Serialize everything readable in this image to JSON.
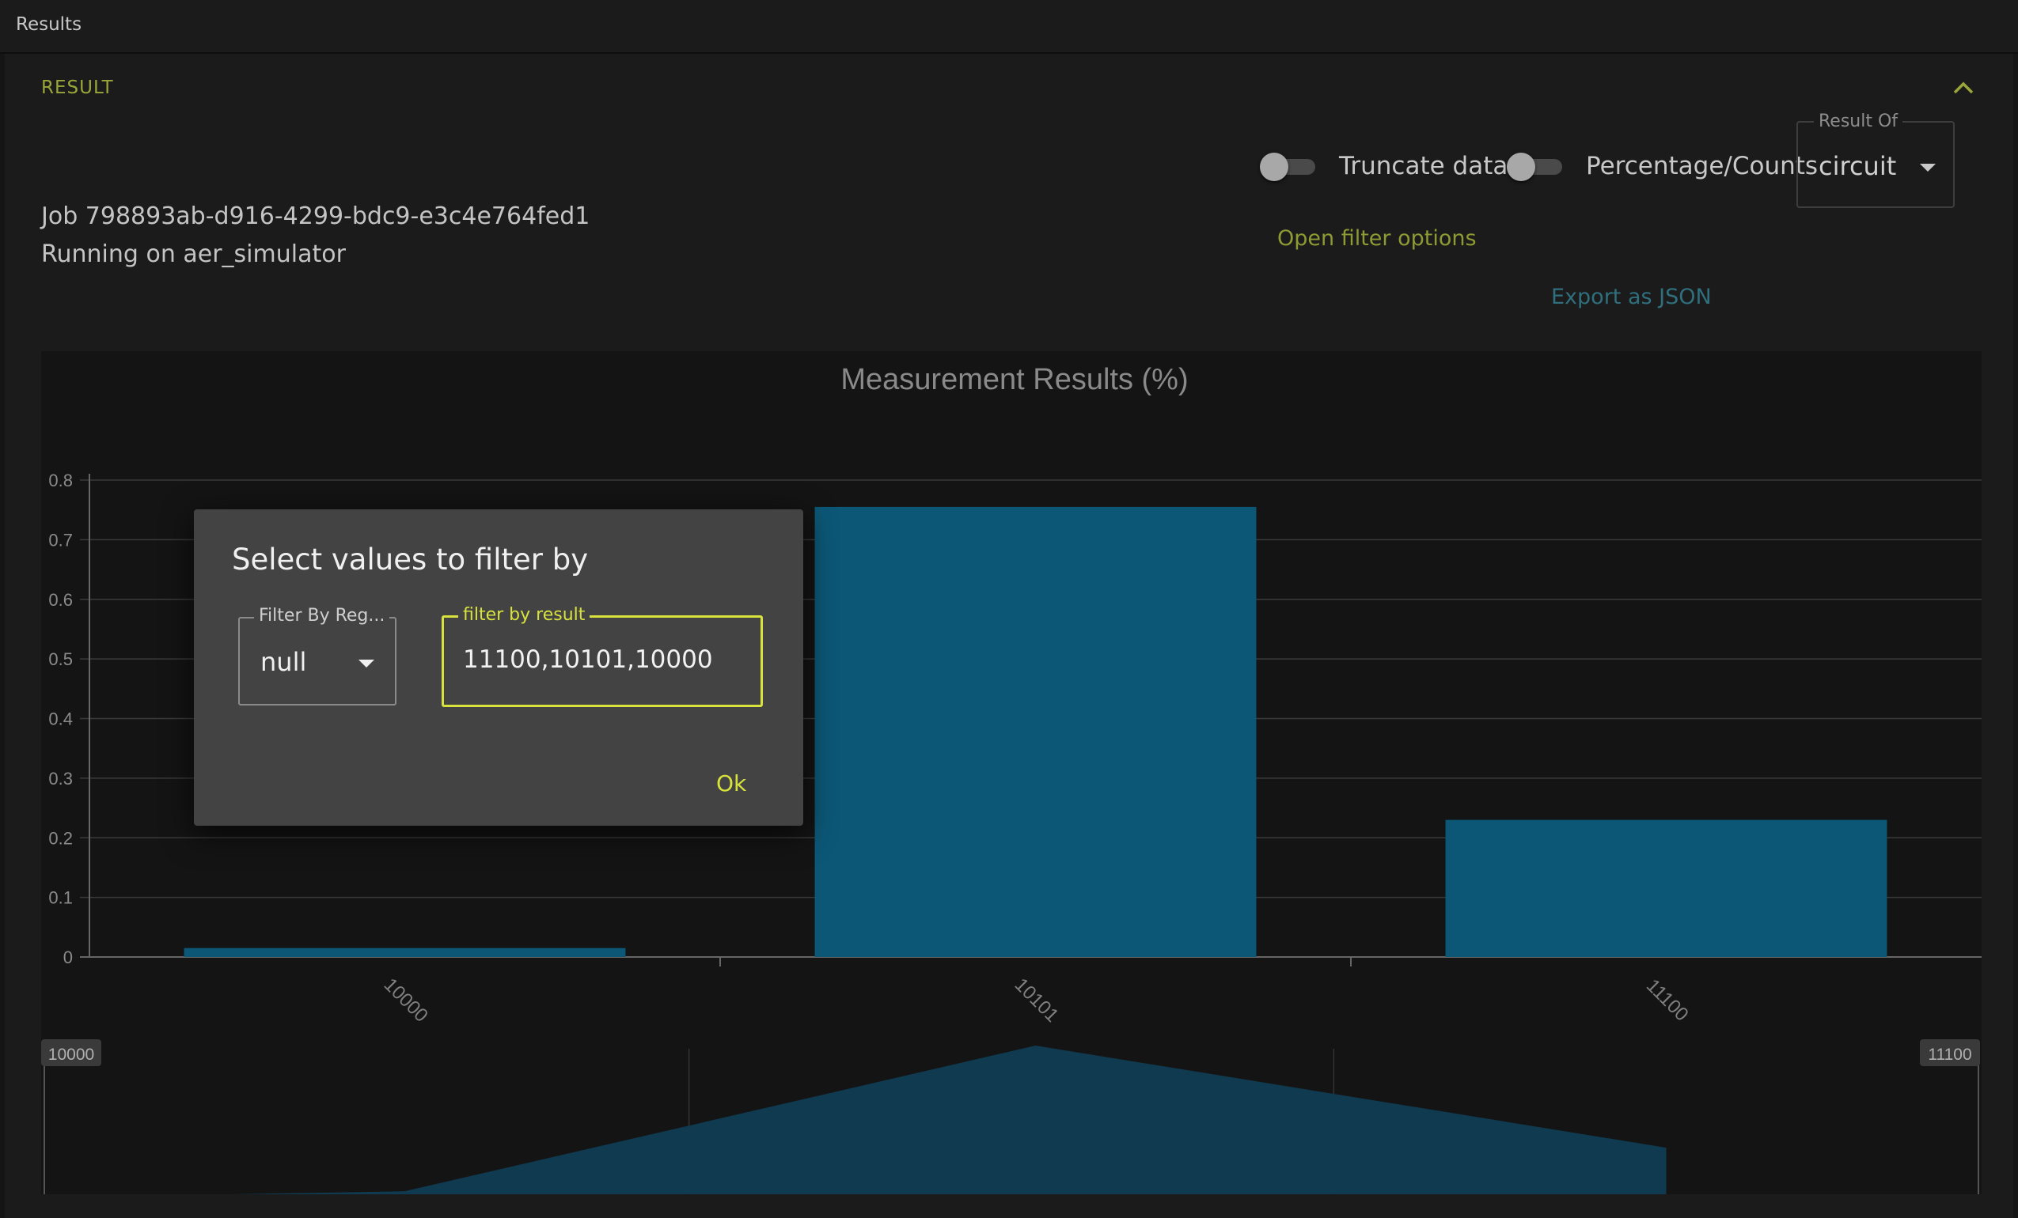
{
  "topbar": {
    "title": "Results"
  },
  "section": {
    "title": "RESULT"
  },
  "job": {
    "id_line": "Job 798893ab-d916-4299-bdc9-e3c4e764fed1",
    "running_line": "Running on aer_simulator"
  },
  "controls": {
    "truncate_label": "Truncate data",
    "percentage_label": "Percentage/Counts",
    "result_of_legend": "Result Of",
    "result_of_value": "circuit",
    "open_filter_label": "Open filter options",
    "export_label": "Export as JSON"
  },
  "colors": {
    "bar": "#0c5776",
    "accent": "#d8e23c",
    "link": "#8e9a34",
    "navigator_fill": "#0f3c52"
  },
  "chart_data": {
    "type": "bar",
    "title": "Measurement Results (%)",
    "categories": [
      "10000",
      "10101",
      "11100"
    ],
    "values": [
      0.015,
      0.755,
      0.23
    ],
    "ylim": [
      0,
      0.8
    ],
    "y_ticks": [
      "0",
      "0.1",
      "0.2",
      "0.3",
      "0.4",
      "0.5",
      "0.6",
      "0.7",
      "0.8"
    ],
    "grid": true,
    "navigator": {
      "left_label": "10000",
      "right_label": "11100"
    }
  },
  "modal": {
    "title": "Select values to filter by",
    "register_legend": "Filter By Reg...",
    "register_value": "null",
    "result_legend": "filter by result",
    "result_value": "11100,10101,10000",
    "ok_label": "Ok"
  }
}
